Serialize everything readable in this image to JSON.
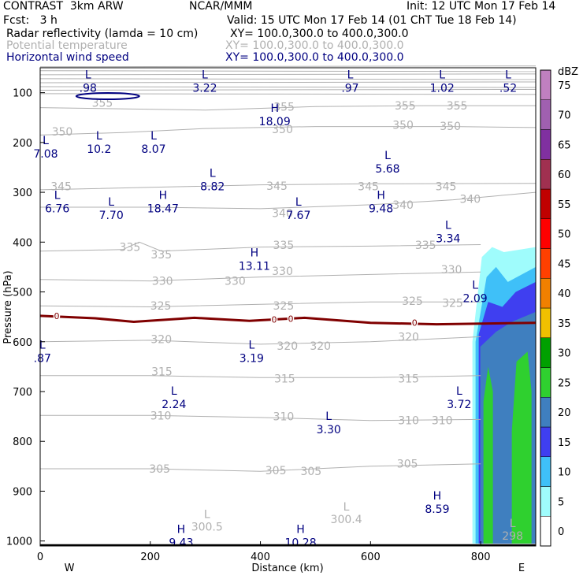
{
  "header": {
    "model": "CONTRAST  3km ARW",
    "org": "NCAR/MMM",
    "init": "Init: 12 UTC Mon 17 Feb 14",
    "fcst": "Fcst:   3 h",
    "valid": "Valid: 15 UTC Mon 17 Feb 14 (01 ChT Tue 18 Feb 14)",
    "fields": [
      {
        "name": "Radar reflectivity (lamda = 10 cm)",
        "xy": "XY= 100.0,300.0 to 400.0,300.0",
        "color": "#000000"
      },
      {
        "name": "Potential temperature",
        "xy": "XY= 100.0,300.0 to 400.0,300.0",
        "color": "#b0b0b0"
      },
      {
        "name": "Horizontal wind speed",
        "xy": "XY= 100.0,300.0 to 400.0,300.0",
        "color": "#000080"
      }
    ]
  },
  "chart_data": {
    "type": "cross-section",
    "xlabel": "Distance (km)",
    "ylabel": "Pressure (hPa)",
    "xlim": [
      0,
      900
    ],
    "ylim": [
      1010,
      50
    ],
    "xticks": [
      0,
      200,
      400,
      600,
      800
    ],
    "yticks": [
      100,
      200,
      300,
      400,
      500,
      600,
      700,
      800,
      900,
      1000
    ],
    "x_end_labels": {
      "left": "W",
      "right": "E"
    },
    "colorbar": {
      "unit": "dBZ",
      "levels": [
        0,
        5,
        10,
        15,
        20,
        25,
        30,
        35,
        40,
        45,
        50,
        55,
        60,
        65,
        70,
        75
      ],
      "colors": [
        "#ffffff",
        "#9ffcfc",
        "#3fc0f8",
        "#3f3ff0",
        "#3f7fbf",
        "#2fd02f",
        "#00a000",
        "#f0c000",
        "#f08000",
        "#ff4000",
        "#ff0000",
        "#c00000",
        "#a03050",
        "#8030a0",
        "#a060b0",
        "#c080c0"
      ]
    },
    "reflectivity_region": {
      "x_start": 785,
      "x_end": 900,
      "p_top": 420,
      "p_bottom": 1005
    },
    "freezing_level": [
      {
        "x": 0,
        "p": 548
      },
      {
        "x": 100,
        "p": 553
      },
      {
        "x": 170,
        "p": 560
      },
      {
        "x": 280,
        "p": 552
      },
      {
        "x": 380,
        "p": 558
      },
      {
        "x": 480,
        "p": 552
      },
      {
        "x": 600,
        "p": 562
      },
      {
        "x": 720,
        "p": 565
      },
      {
        "x": 900,
        "p": 562
      }
    ],
    "freezing_label": "0",
    "theta_contours": [
      {
        "level": 355,
        "label": "355",
        "points": [
          [
            0,
            130
          ],
          [
            300,
            135
          ],
          [
            500,
            128
          ],
          [
            700,
            126
          ],
          [
            900,
            126
          ]
        ],
        "labels": [
          {
            "x": 113,
            "p": 120
          },
          {
            "x": 443,
            "p": 128
          },
          {
            "x": 663,
            "p": 126
          },
          {
            "x": 757,
            "p": 126
          }
        ]
      },
      {
        "level": 350,
        "label": "350",
        "points": [
          [
            0,
            185
          ],
          [
            150,
            180
          ],
          [
            300,
            172
          ],
          [
            500,
            168
          ],
          [
            650,
            168
          ],
          [
            750,
            168
          ],
          [
            900,
            170
          ]
        ],
        "labels": [
          {
            "x": 40,
            "p": 178
          },
          {
            "x": 440,
            "p": 173
          },
          {
            "x": 659,
            "p": 165
          },
          {
            "x": 745,
            "p": 167
          }
        ]
      },
      {
        "level": 345,
        "label": "345",
        "points": [
          [
            0,
            295
          ],
          [
            200,
            290
          ],
          [
            400,
            285
          ],
          [
            600,
            283
          ],
          [
            900,
            282
          ]
        ],
        "labels": [
          {
            "x": 38,
            "p": 288
          },
          {
            "x": 430,
            "p": 287
          },
          {
            "x": 596,
            "p": 288
          },
          {
            "x": 737,
            "p": 288
          }
        ]
      },
      {
        "level": 340,
        "label": "340",
        "points": [
          [
            0,
            330
          ],
          [
            200,
            330
          ],
          [
            400,
            333
          ],
          [
            600,
            325
          ],
          [
            750,
            315
          ],
          [
            900,
            300
          ]
        ],
        "labels": [
          {
            "x": 440,
            "p": 342
          },
          {
            "x": 659,
            "p": 325
          },
          {
            "x": 781,
            "p": 313
          }
        ]
      },
      {
        "level": 335,
        "label": "335",
        "points": [
          [
            0,
            418
          ],
          [
            150,
            415
          ],
          [
            180,
            400
          ],
          [
            220,
            418
          ],
          [
            400,
            410
          ],
          [
            600,
            408
          ],
          [
            800,
            405
          ]
        ],
        "labels": [
          {
            "x": 163,
            "p": 410
          },
          {
            "x": 220,
            "p": 425
          },
          {
            "x": 442,
            "p": 406
          },
          {
            "x": 700,
            "p": 406
          }
        ]
      },
      {
        "level": 330,
        "label": "330",
        "points": [
          [
            0,
            475
          ],
          [
            200,
            478
          ],
          [
            400,
            470
          ],
          [
            600,
            465
          ],
          [
            800,
            460
          ]
        ],
        "labels": [
          {
            "x": 222,
            "p": 478
          },
          {
            "x": 354,
            "p": 478
          },
          {
            "x": 440,
            "p": 458
          },
          {
            "x": 747,
            "p": 455
          }
        ]
      },
      {
        "level": 325,
        "label": "325",
        "points": [
          [
            0,
            528
          ],
          [
            200,
            530
          ],
          [
            400,
            525
          ],
          [
            600,
            520
          ],
          [
            800,
            520
          ]
        ],
        "labels": [
          {
            "x": 219,
            "p": 528
          },
          {
            "x": 442,
            "p": 528
          },
          {
            "x": 676,
            "p": 518
          },
          {
            "x": 749,
            "p": 522
          }
        ]
      },
      {
        "level": 320,
        "label": "320",
        "points": [
          [
            0,
            600
          ],
          [
            200,
            597
          ],
          [
            400,
            605
          ],
          [
            600,
            600
          ],
          [
            800,
            590
          ]
        ],
        "labels": [
          {
            "x": 220,
            "p": 595
          },
          {
            "x": 449,
            "p": 608
          },
          {
            "x": 509,
            "p": 608
          },
          {
            "x": 669,
            "p": 590
          }
        ]
      },
      {
        "level": 315,
        "label": "315",
        "points": [
          [
            0,
            668
          ],
          [
            200,
            668
          ],
          [
            400,
            672
          ],
          [
            600,
            672
          ],
          [
            800,
            668
          ]
        ],
        "labels": [
          {
            "x": 221,
            "p": 660
          },
          {
            "x": 444,
            "p": 674
          },
          {
            "x": 669,
            "p": 674
          }
        ]
      },
      {
        "level": 310,
        "label": "310",
        "points": [
          [
            0,
            748
          ],
          [
            200,
            748
          ],
          [
            400,
            752
          ],
          [
            600,
            758
          ],
          [
            800,
            756
          ]
        ],
        "labels": [
          {
            "x": 219,
            "p": 748
          },
          {
            "x": 442,
            "p": 750
          },
          {
            "x": 669,
            "p": 758
          },
          {
            "x": 730,
            "p": 758
          }
        ]
      },
      {
        "level": 305,
        "label": "305",
        "points": [
          [
            0,
            855
          ],
          [
            200,
            855
          ],
          [
            400,
            860
          ],
          [
            600,
            850
          ],
          [
            800,
            845
          ]
        ],
        "labels": [
          {
            "x": 217,
            "p": 855
          },
          {
            "x": 428,
            "p": 858
          },
          {
            "x": 492,
            "p": 860
          },
          {
            "x": 667,
            "p": 845
          }
        ]
      }
    ],
    "theta_extrema": [
      {
        "type": "L",
        "value": "300.5",
        "x": 303,
        "p": 960
      },
      {
        "type": "L",
        "value": "300.4",
        "x": 556,
        "p": 945
      },
      {
        "type": "L",
        "value": "298",
        "x": 858,
        "p": 978
      }
    ],
    "wind_extrema": [
      {
        "type": "L",
        "value": ".98",
        "x": 87,
        "p": 78
      },
      {
        "type": "L",
        "value": "3.22",
        "x": 299,
        "p": 78
      },
      {
        "type": "L",
        "value": ".97",
        "x": 563,
        "p": 78
      },
      {
        "type": "L",
        "value": "1.02",
        "x": 730,
        "p": 78
      },
      {
        "type": "L",
        "value": ".52",
        "x": 850,
        "p": 78
      },
      {
        "type": "H",
        "value": "18.09",
        "x": 426,
        "p": 145
      },
      {
        "type": "L",
        "value": "10.2",
        "x": 107,
        "p": 200
      },
      {
        "type": "L",
        "value": "8.07",
        "x": 206,
        "p": 200
      },
      {
        "type": "L",
        "value": "7.08",
        "x": 10,
        "p": 210
      },
      {
        "type": "L",
        "value": "5.68",
        "x": 631,
        "p": 240
      },
      {
        "type": "L",
        "value": "8.82",
        "x": 313,
        "p": 275
      },
      {
        "type": "L",
        "value": "6.76",
        "x": 31,
        "p": 320
      },
      {
        "type": "H",
        "value": "18.47",
        "x": 223,
        "p": 320
      },
      {
        "type": "L",
        "value": "7.70",
        "x": 129,
        "p": 333
      },
      {
        "type": "L",
        "value": "7.67",
        "x": 469,
        "p": 333
      },
      {
        "type": "H",
        "value": "9.48",
        "x": 619,
        "p": 320
      },
      {
        "type": "L",
        "value": "3.34",
        "x": 741,
        "p": 380
      },
      {
        "type": "H",
        "value": "13.11",
        "x": 389,
        "p": 435
      },
      {
        "type": "L",
        "value": "2.09",
        "x": 790,
        "p": 500
      },
      {
        "type": "L",
        "value": ".87",
        "x": 4,
        "p": 620
      },
      {
        "type": "L",
        "value": "3.19",
        "x": 384,
        "p": 620
      },
      {
        "type": "L",
        "value": "2.24",
        "x": 243,
        "p": 713
      },
      {
        "type": "L",
        "value": "3.72",
        "x": 761,
        "p": 713
      },
      {
        "type": "L",
        "value": "3.30",
        "x": 524,
        "p": 763
      },
      {
        "type": "H",
        "value": "8.59",
        "x": 721,
        "p": 923
      },
      {
        "type": "H",
        "value": "9.43",
        "x": 256,
        "p": 990
      },
      {
        "type": "H",
        "value": "10.28",
        "x": 473,
        "p": 990
      }
    ],
    "upper_contours": [
      48,
      56,
      64,
      72,
      80,
      88,
      95,
      102
    ]
  }
}
